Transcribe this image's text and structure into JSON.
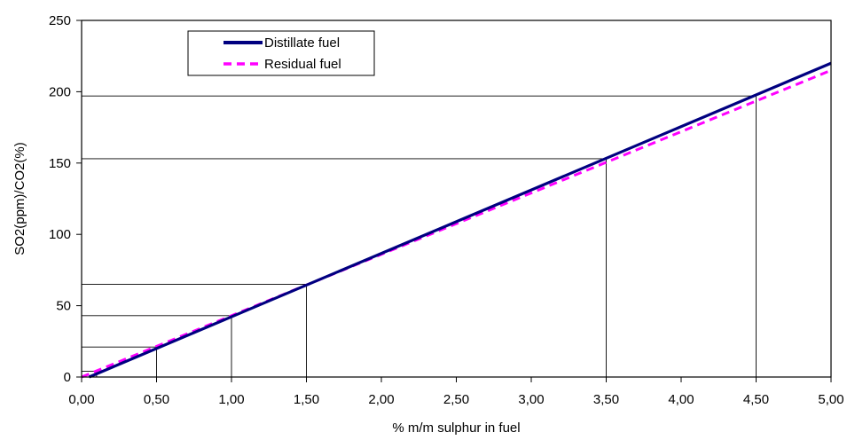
{
  "chart_data": {
    "type": "line",
    "title": "",
    "xlabel": "% m/m sulphur in fuel",
    "ylabel": "SO2(ppm)/CO2(%)",
    "xlim": [
      0,
      5
    ],
    "ylim": [
      0,
      250
    ],
    "x_ticks": [
      "0,00",
      "0,50",
      "1,00",
      "1,50",
      "2,00",
      "2,50",
      "3,00",
      "3,50",
      "4,00",
      "4,50",
      "5,00"
    ],
    "y_ticks": [
      "0",
      "50",
      "100",
      "150",
      "200",
      "250"
    ],
    "grid": false,
    "legend_position": "top-left",
    "series": [
      {
        "name": "Distillate fuel",
        "color": "#000080",
        "line_style": "solid",
        "x": [
          0.05,
          5.0
        ],
        "y": [
          0,
          220
        ]
      },
      {
        "name": "Residual fuel",
        "color": "#ff00ff",
        "line_style": "dashed",
        "x": [
          0.0,
          5.0
        ],
        "y": [
          0,
          215
        ]
      }
    ],
    "reference_points": [
      {
        "x": 0.1,
        "y": 4
      },
      {
        "x": 0.5,
        "y": 21
      },
      {
        "x": 1.0,
        "y": 43
      },
      {
        "x": 1.5,
        "y": 65
      },
      {
        "x": 3.5,
        "y": 153
      },
      {
        "x": 4.5,
        "y": 197
      }
    ]
  }
}
